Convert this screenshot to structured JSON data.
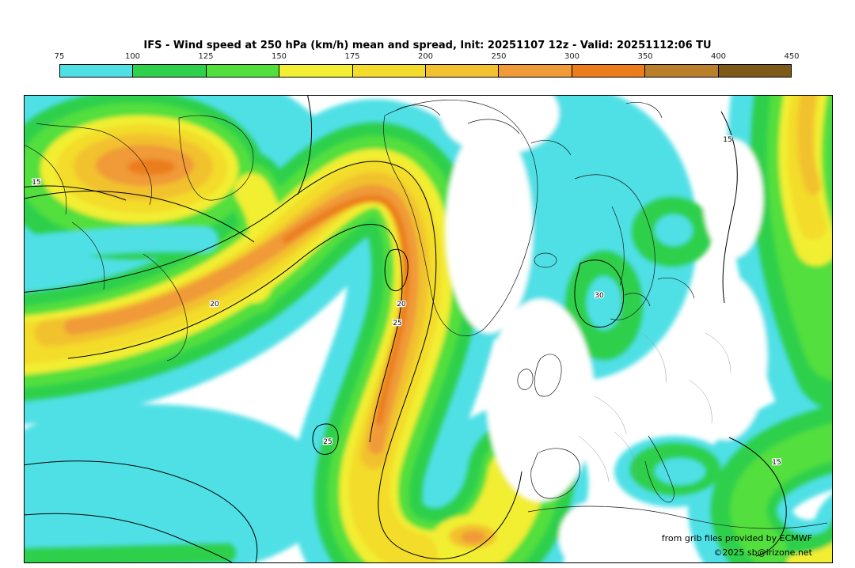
{
  "header": {
    "title": "IFS - Wind speed at 250 hPa (km/h) mean and spread, Init: 20251107 12z - Valid: 20251112:06 TU"
  },
  "colorbar": {
    "tick_labels": [
      "75",
      "100",
      "125",
      "150",
      "175",
      "200",
      "250",
      "300",
      "350",
      "400",
      "450"
    ],
    "segment_colors": [
      "#4fe0e6",
      "#2fd04c",
      "#52df3d",
      "#f2ee33",
      "#f3dc2b",
      "#f2c12f",
      "#f09a38",
      "#eb7d1b",
      "#b97f2a",
      "#7d5a17"
    ]
  },
  "map": {
    "contour_labels": [
      "15",
      "20",
      "25",
      "25",
      "20",
      "15",
      "15",
      "30"
    ],
    "credit": "from grib files provided by ECMWF",
    "copyright": "©2025 sb@irizone.net"
  },
  "chart_data": {
    "type": "heatmap",
    "title": "IFS - Wind speed at 250 hPa (km/h) mean and spread, Init: 20251107 12z - Valid: 20251112:06 TU",
    "model": "IFS",
    "variable": "Wind speed at 250 hPa (km/h) mean and spread",
    "init": "20251107 12z",
    "valid": "20251112:06 TU",
    "legend_levels_kmh": [
      75,
      100,
      125,
      150,
      175,
      200,
      250,
      300,
      350,
      400,
      450
    ],
    "legend_colors": [
      "#4fe0e6",
      "#2fd04c",
      "#52df3d",
      "#f2ee33",
      "#f3dc2b",
      "#f2c12f",
      "#f09a38",
      "#eb7d1b",
      "#b97f2a",
      "#7d5a17"
    ],
    "spread_contour_labels": [
      15,
      20,
      25,
      30
    ],
    "credit": "from grib files provided by ECMWF",
    "copyright": "©2025 sb@irizone.net"
  }
}
